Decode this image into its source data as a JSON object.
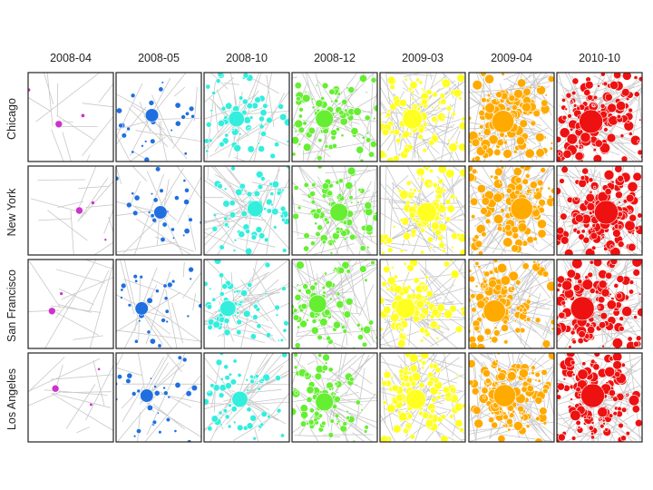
{
  "chart_data": {
    "type": "small-multiples-network",
    "columns": [
      "2008-04",
      "2008-05",
      "2008-10",
      "2008-12",
      "2009-03",
      "2009-04",
      "2010-10"
    ],
    "rows": [
      "Chicago",
      "New York",
      "San Francisco",
      "Los Angeles"
    ],
    "column_colors": [
      "#cc33cc",
      "#1f6fe0",
      "#33eedd",
      "#66ee33",
      "#ffff22",
      "#ffaa00",
      "#ee1111"
    ],
    "edge_color": "#c8c8c8",
    "relative_density": [
      0.05,
      0.18,
      0.4,
      0.55,
      0.7,
      0.88,
      1.0
    ]
  }
}
